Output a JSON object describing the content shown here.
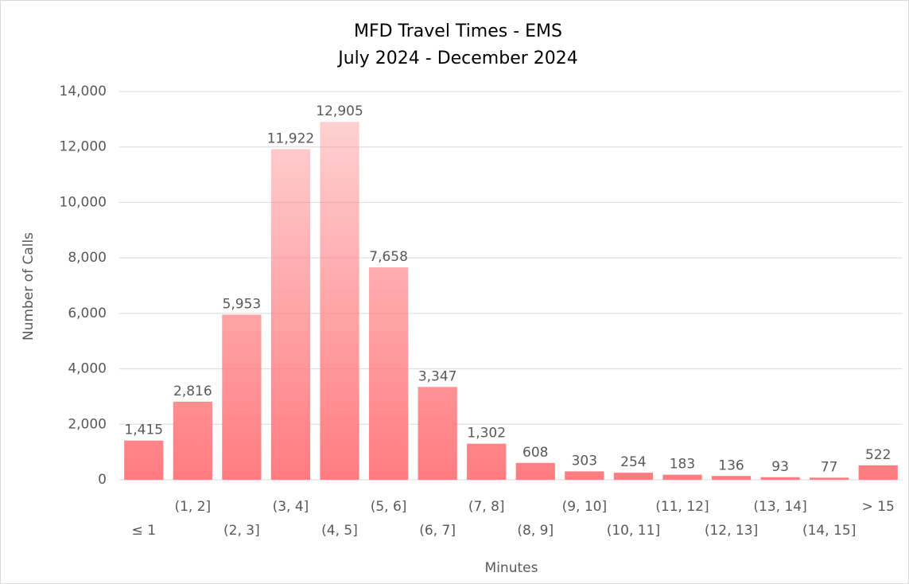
{
  "chart_data": {
    "type": "bar",
    "title": "MFD Travel Times - EMS",
    "subtitle": "July 2024 - December 2024",
    "x_label": "Minutes",
    "y_label": "Number of Calls",
    "categories": [
      "≤ 1",
      "(1, 2]",
      "(2, 3]",
      "(3, 4]",
      "(4, 5]",
      "(5, 6]",
      "(6, 7]",
      "(7, 8]",
      "(8, 9]",
      "(9, 10]",
      "(10, 11]",
      "(11, 12]",
      "(12, 13]",
      "(13, 14]",
      "(14, 15]",
      "> 15"
    ],
    "values": [
      1415,
      2816,
      5953,
      11922,
      12905,
      7658,
      3347,
      1302,
      608,
      303,
      254,
      183,
      136,
      93,
      77,
      522
    ],
    "value_labels": [
      "1,415",
      "2,816",
      "5,953",
      "11,922",
      "12,905",
      "7,658",
      "3,347",
      "1,302",
      "608",
      "303",
      "254",
      "183",
      "136",
      "93",
      "77",
      "522"
    ],
    "color": "#ff7c80",
    "ylim": [
      0,
      14000
    ],
    "yticks": [
      0,
      {
        "value": 2000,
        "label": "2,000"
      },
      {
        "value": 4000,
        "label": "4,000"
      },
      {
        "value": 6000,
        "label": "6,000"
      },
      {
        "value": 8000,
        "label": "8,000"
      },
      {
        "value": 10000,
        "label": "10,000"
      },
      {
        "value": 12000,
        "label": "12,000"
      },
      {
        "value": 14000,
        "label": "14,000"
      }
    ],
    "grid": true
  }
}
